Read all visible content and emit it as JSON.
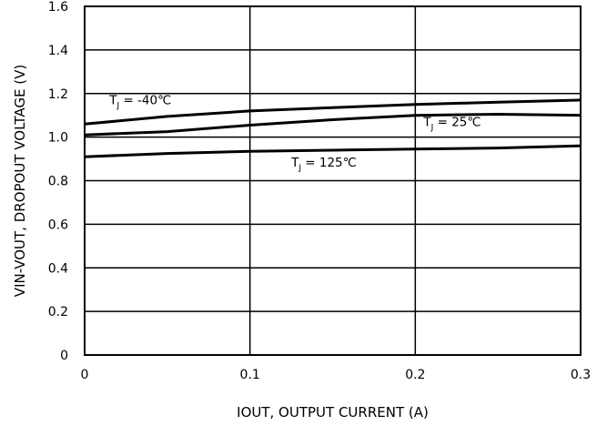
{
  "chart_data": {
    "type": "line",
    "xlabel": "IOUT, OUTPUT CURRENT (A)",
    "ylabel": "VIN-VOUT, DROPOUT VOLTAGE (V)",
    "xlim": [
      0,
      0.3
    ],
    "ylim": [
      0,
      1.6
    ],
    "x_ticks": [
      "0",
      "0.1",
      "0.2",
      "0.3"
    ],
    "y_ticks": [
      "0",
      "0.2",
      "0.4",
      "0.6",
      "0.8",
      "1.0",
      "1.2",
      "1.4",
      "1.6"
    ],
    "grid": true,
    "series": [
      {
        "name_main": "T",
        "name_sub": "J",
        "name_rest": " = -40℃",
        "label_at": [
          0.015,
          1.15
        ],
        "x": [
          0,
          0.05,
          0.1,
          0.15,
          0.2,
          0.25,
          0.3
        ],
        "y": [
          1.06,
          1.095,
          1.12,
          1.135,
          1.15,
          1.16,
          1.17
        ]
      },
      {
        "name_main": "T",
        "name_sub": "J",
        "name_rest": " = 25℃",
        "label_at": [
          0.205,
          1.05
        ],
        "x": [
          0,
          0.05,
          0.1,
          0.15,
          0.2,
          0.25,
          0.3
        ],
        "y": [
          1.01,
          1.025,
          1.055,
          1.08,
          1.1,
          1.105,
          1.1
        ]
      },
      {
        "name_main": "T",
        "name_sub": "J",
        "name_rest": " = 125℃",
        "label_at": [
          0.125,
          0.865
        ],
        "x": [
          0,
          0.05,
          0.1,
          0.15,
          0.2,
          0.25,
          0.3
        ],
        "y": [
          0.91,
          0.925,
          0.935,
          0.94,
          0.945,
          0.95,
          0.96
        ]
      }
    ]
  }
}
